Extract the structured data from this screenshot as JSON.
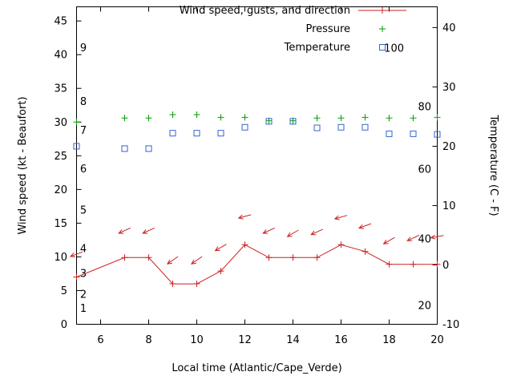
{
  "figure": {
    "background": "#ffffff",
    "border_color": "#000000"
  },
  "chart_data": {
    "type": "line",
    "title": "",
    "xlabel": "Local time (Atlantic/Cape_Verde)",
    "ylabel_left": "Wind speed (kt - Beaufort)",
    "ylabel_right": "Temperature (C - F)",
    "x_range": [
      5,
      20
    ],
    "y_left_range": [
      0,
      47.1
    ],
    "y_right_range": [
      -10,
      43.5
    ],
    "x_ticks": [
      6,
      8,
      10,
      12,
      14,
      16,
      18,
      20
    ],
    "y_left_ticks": [
      0,
      5,
      10,
      15,
      20,
      25,
      30,
      35,
      40,
      45
    ],
    "y_right_ticks": [
      -10,
      0,
      10,
      20,
      30,
      40
    ],
    "grid": false,
    "legend_position": "top-inside",
    "legend": [
      {
        "label": "Wind speed, gusts, and direction",
        "marker": "line-plus",
        "color": "#cc2222"
      },
      {
        "label": "Pressure",
        "marker": "plus",
        "color": "#00a000"
      },
      {
        "label": "Temperature",
        "marker": "open-square",
        "color": "#3366cc"
      }
    ],
    "beaufort_labels": [
      {
        "label": "1",
        "kt": 2.3
      },
      {
        "label": "2",
        "kt": 4.4
      },
      {
        "label": "3",
        "kt": 7.5
      },
      {
        "label": "4",
        "kt": 11.2
      },
      {
        "label": "5",
        "kt": 16.9
      },
      {
        "label": "6",
        "kt": 23.0
      },
      {
        "label": "7",
        "kt": 28.7
      },
      {
        "label": "8",
        "kt": 33.0
      },
      {
        "label": "9",
        "kt": 41.0
      }
    ],
    "fahrenheit_labels": [
      {
        "label": "20",
        "c": -6.9
      },
      {
        "label": "40",
        "c": 4.3
      },
      {
        "label": "60",
        "c": 16.1
      },
      {
        "label": "80",
        "c": 26.6
      },
      {
        "label": "100",
        "c": 36.5,
        "near_legend": true
      }
    ],
    "x": [
      5,
      7,
      8,
      9,
      10,
      11,
      12,
      13,
      14,
      15,
      16,
      17,
      18,
      19,
      20
    ],
    "series": [
      {
        "name": "wind_speed",
        "axis": "left",
        "style": "line-plus",
        "color": "#cc2222",
        "values": [
          7.0,
          9.9,
          9.9,
          6.0,
          6.0,
          7.9,
          11.8,
          9.9,
          9.9,
          9.9,
          11.8,
          10.8,
          8.9,
          8.9,
          8.9
        ]
      },
      {
        "name": "wind_gust_direction",
        "axis": "left",
        "style": "arrow",
        "color": "#cc2222",
        "values": [
          10.4,
          13.9,
          13.9,
          9.5,
          9.5,
          11.4,
          16.0,
          13.9,
          13.5,
          13.7,
          15.9,
          14.6,
          12.4,
          12.8,
          13.0
        ],
        "arrow_angles_deg": [
          200,
          205,
          205,
          215,
          215,
          210,
          195,
          205,
          210,
          205,
          195,
          200,
          210,
          205,
          190
        ]
      },
      {
        "name": "pressure",
        "axis": "left",
        "style": "plus",
        "color": "#00a000",
        "values": [
          30.0,
          30.6,
          30.6,
          31.1,
          31.1,
          30.7,
          30.7,
          30.2,
          30.2,
          30.6,
          30.6,
          30.7,
          30.6,
          30.6,
          30.7
        ]
      },
      {
        "name": "temperature_c",
        "axis": "right",
        "style": "open-square",
        "color": "#3366cc",
        "values": [
          20.0,
          19.6,
          19.6,
          22.2,
          22.2,
          22.2,
          23.2,
          24.2,
          24.2,
          23.1,
          23.2,
          23.2,
          22.1,
          22.1,
          22.0
        ]
      }
    ]
  }
}
